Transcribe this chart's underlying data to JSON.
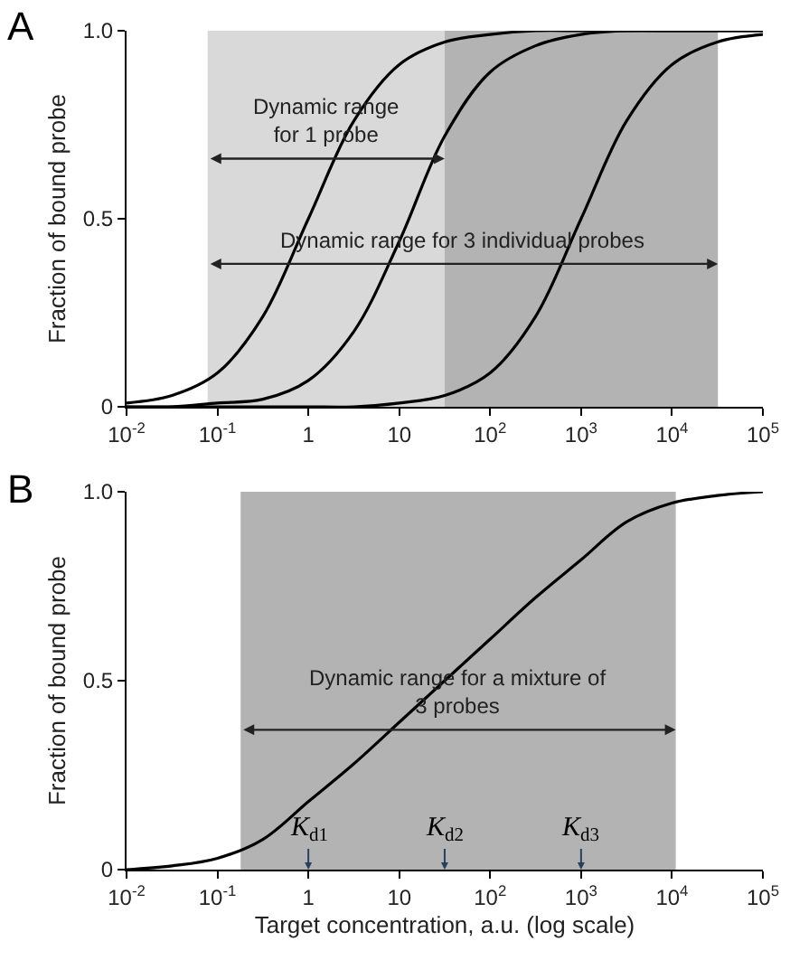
{
  "chart_data": [
    {
      "type": "line",
      "title": "A",
      "ylabel": "Fraction of bound probe",
      "x": [
        0.01,
        0.0316,
        0.1,
        0.316,
        1,
        3.16,
        10,
        31.6,
        100,
        316,
        1000,
        3160,
        10000,
        31600,
        100000
      ],
      "series": [
        {
          "color": "#000000",
          "values": [
            0.01,
            0.03,
            0.09,
            0.24,
            0.5,
            0.76,
            0.91,
            0.97,
            0.99,
            1.0,
            1.0,
            1.0,
            1.0,
            1.0,
            1.0
          ]
        },
        {
          "color": "#000000",
          "values": [
            0.0,
            0.0,
            0.01,
            0.02,
            0.07,
            0.2,
            0.44,
            0.72,
            0.89,
            0.96,
            0.99,
            1.0,
            1.0,
            1.0,
            1.0
          ]
        },
        {
          "color": "#000000",
          "values": [
            0.0,
            0.0,
            0.0,
            0.0,
            0.0,
            0.0,
            0.01,
            0.03,
            0.09,
            0.24,
            0.5,
            0.76,
            0.91,
            0.97,
            0.99
          ]
        }
      ],
      "xlim": [
        0.01,
        100000
      ],
      "ylim": [
        0,
        1
      ],
      "xticks": [
        {
          "value": 0.01,
          "label": "10$^{-2}$"
        },
        {
          "value": 0.1,
          "label": "10$^{-1}$"
        },
        1,
        10,
        {
          "value": 100,
          "label": "10$^{2}$"
        },
        {
          "value": 1000,
          "label": "10$^{3}$"
        },
        {
          "value": 10000,
          "label": "10$^{4}$"
        },
        {
          "value": 100000,
          "label": "10$^{5}$"
        }
      ],
      "yticks": [
        0,
        0.5,
        {
          "value": 1,
          "label": "1.0"
        }
      ],
      "log": "x",
      "grid": false,
      "line_style": "solid",
      "marker": "none",
      "bands": [
        {
          "axis": "x",
          "from": 0.078,
          "to": 31.6,
          "color": "#d9d9d9"
        },
        {
          "axis": "x",
          "from": 31.6,
          "to": 32000,
          "color": "#b3b3b3"
        }
      ],
      "annotations": [
        "Dynamic range\nfor 1 probe",
        "Dynamic range for 3 individual probes"
      ]
    },
    {
      "type": "line",
      "title": "B",
      "xlabel": "Target concentration, a.u. (log scale)",
      "ylabel": "Fraction of bound probe",
      "x": [
        0.01,
        0.0316,
        0.1,
        0.316,
        1,
        3.16,
        10,
        31.6,
        100,
        316,
        1000,
        3160,
        10000,
        31600,
        100000
      ],
      "series": [
        {
          "color": "#000000",
          "values": [
            0.0,
            0.01,
            0.03,
            0.08,
            0.18,
            0.28,
            0.39,
            0.5,
            0.61,
            0.72,
            0.82,
            0.92,
            0.97,
            0.99,
            1.0
          ]
        }
      ],
      "xlim": [
        0.01,
        100000
      ],
      "ylim": [
        0,
        1
      ],
      "xticks": [
        {
          "value": 0.01,
          "label": "10$^{-2}$"
        },
        {
          "value": 0.1,
          "label": "10$^{-1}$"
        },
        1,
        10,
        {
          "value": 100,
          "label": "10$^{2}$"
        },
        {
          "value": 1000,
          "label": "10$^{3}$"
        },
        {
          "value": 10000,
          "label": "10$^{4}$"
        },
        {
          "value": 100000,
          "label": "10$^{5}$"
        }
      ],
      "yticks": [
        0,
        0.5,
        {
          "value": 1,
          "label": "1.0"
        }
      ],
      "log": "x",
      "grid": false,
      "line_style": "solid",
      "marker": "none",
      "bands": [
        {
          "axis": "x",
          "from": 0.18,
          "to": 11000,
          "color": "#b3b3b3"
        }
      ],
      "annotations": [
        "Dynamic range for a mixture of\n3 probes",
        {
          "text": "K$_{d1}$",
          "x": 1,
          "y": 0
        },
        {
          "text": "K$_{d2}$",
          "x": 31.6,
          "y": 0
        },
        {
          "text": "K$_{d3}$",
          "x": 1000,
          "y": 0
        }
      ]
    }
  ]
}
